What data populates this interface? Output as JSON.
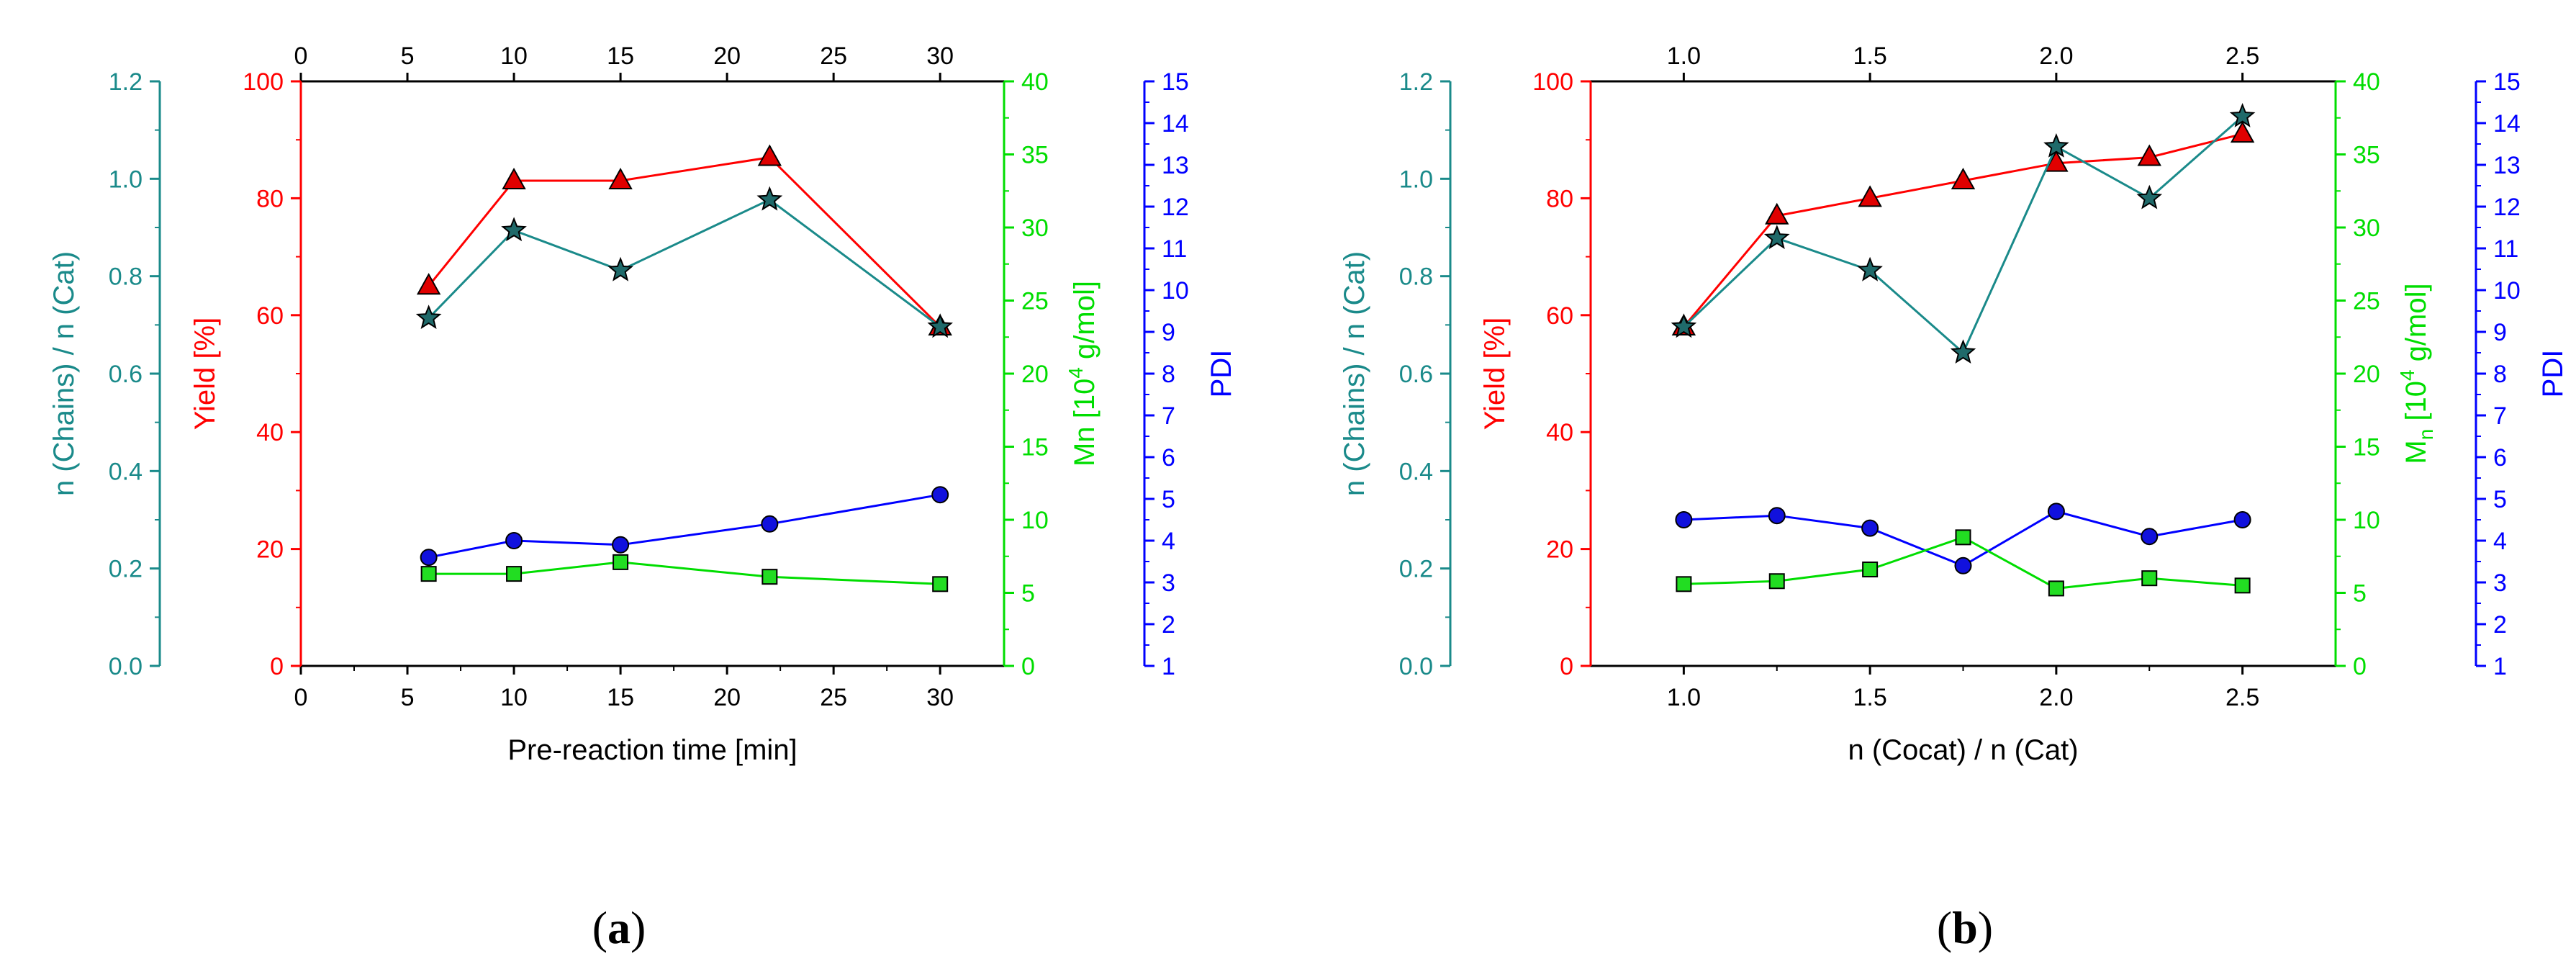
{
  "colors": {
    "red": "#ff0000",
    "teal": "#1a8a8a",
    "green": "#00dd00",
    "blue": "#0000ff",
    "black": "#000000",
    "marker_red": "#e00000",
    "marker_green": "#22dd22",
    "marker_blue": "#1111dd",
    "marker_star": "#1f6a6a"
  },
  "chart_data": [
    {
      "id": "a",
      "type": "line",
      "caption_letter": "a",
      "caption_open": "(",
      "caption_close": ")",
      "xlabel": "Pre-reaction time [min]",
      "xlim": [
        0,
        33
      ],
      "x_ticks": [
        "0",
        "5",
        "10",
        "15",
        "20",
        "25",
        "30"
      ],
      "x_tick_values": [
        0,
        5,
        10,
        15,
        20,
        25,
        30
      ],
      "top_ticks": [
        "0",
        "5",
        "10",
        "15",
        "20",
        "25",
        "30"
      ],
      "top_tick_values": [
        0,
        5,
        10,
        15,
        20,
        25,
        30
      ],
      "axes": {
        "chains": {
          "label": "n (Chains) / n (Cat)",
          "lim": [
            0,
            1.2
          ],
          "ticks": [
            "0.0",
            "0.2",
            "0.4",
            "0.6",
            "0.8",
            "1.0",
            "1.2"
          ]
        },
        "yield": {
          "label": "Yield [%]",
          "lim": [
            0,
            100
          ],
          "ticks": [
            "0",
            "20",
            "40",
            "60",
            "80",
            "100"
          ]
        },
        "mn": {
          "label": "Mn [10",
          "label_sup": "4",
          "label_end": " g/mol]",
          "lim": [
            0,
            40
          ],
          "ticks": [
            "0",
            "5",
            "10",
            "15",
            "20",
            "25",
            "30",
            "35",
            "40"
          ]
        },
        "pdi": {
          "label": "PDI",
          "lim": [
            1,
            15
          ],
          "ticks": [
            "1",
            "2",
            "3",
            "4",
            "5",
            "6",
            "7",
            "8",
            "9",
            "10",
            "11",
            "12",
            "13",
            "14",
            "15"
          ]
        }
      },
      "x": [
        6,
        10,
        15,
        22,
        30
      ],
      "series": [
        {
          "name": "Yield",
          "axis": "yield",
          "marker": "triangle",
          "values": [
            65,
            83,
            83,
            87,
            58
          ]
        },
        {
          "name": "n (Chains) / n (Cat)",
          "axis": "chains",
          "marker": "star",
          "values": [
            0.714,
            0.894,
            0.812,
            0.957,
            0.696
          ]
        },
        {
          "name": "PDI",
          "axis": "pdi",
          "marker": "circle",
          "values": [
            3.6,
            4.0,
            3.9,
            4.4,
            5.1
          ]
        },
        {
          "name": "Mn",
          "axis": "mn",
          "marker": "square",
          "values": [
            6.3,
            6.3,
            7.1,
            6.1,
            5.6
          ]
        }
      ]
    },
    {
      "id": "b",
      "type": "line",
      "caption_letter": "b",
      "caption_open": "(",
      "caption_close": ")",
      "xlabel": "n (Cocat) / n (Cat)",
      "xlim": [
        0.75,
        2.75
      ],
      "x_ticks": [
        "1.0",
        "1.5",
        "2.0",
        "2.5"
      ],
      "x_tick_values": [
        1.0,
        1.5,
        2.0,
        2.5
      ],
      "top_ticks": [
        "1.0",
        "1.5",
        "2.0",
        "2.5"
      ],
      "top_tick_values": [
        1.0,
        1.5,
        2.0,
        2.5
      ],
      "axes": {
        "chains": {
          "label": "n (Chains) / n (Cat)",
          "lim": [
            0,
            1.2
          ],
          "ticks": [
            "0.0",
            "0.2",
            "0.4",
            "0.6",
            "0.8",
            "1.0",
            "1.2"
          ]
        },
        "yield": {
          "label": "Yield [%]",
          "lim": [
            0,
            100
          ],
          "ticks": [
            "0",
            "20",
            "40",
            "60",
            "80",
            "100"
          ]
        },
        "mn": {
          "label": "M",
          "label_sub": "n",
          "label_mid": " [10",
          "label_sup": "4",
          "label_end": " g/mol]",
          "lim": [
            0,
            40
          ],
          "ticks": [
            "0",
            "5",
            "10",
            "15",
            "20",
            "25",
            "30",
            "35",
            "40"
          ]
        },
        "pdi": {
          "label": "PDI",
          "lim": [
            1,
            15
          ],
          "ticks": [
            "1",
            "2",
            "3",
            "4",
            "5",
            "6",
            "7",
            "8",
            "9",
            "10",
            "11",
            "12",
            "13",
            "14",
            "15"
          ]
        }
      },
      "x": [
        1.0,
        1.25,
        1.5,
        1.75,
        2.0,
        2.25,
        2.5
      ],
      "series": [
        {
          "name": "Yield",
          "axis": "yield",
          "marker": "triangle",
          "values": [
            58,
            77,
            80,
            83,
            86,
            87,
            91
          ]
        },
        {
          "name": "n (Chains) / n (Cat)",
          "axis": "chains",
          "marker": "star",
          "values": [
            0.696,
            0.878,
            0.812,
            0.643,
            1.066,
            0.96,
            1.128
          ]
        },
        {
          "name": "PDI",
          "axis": "pdi",
          "marker": "circle",
          "values": [
            4.5,
            4.6,
            4.3,
            3.4,
            4.7,
            4.1,
            4.5
          ]
        },
        {
          "name": "Mn",
          "axis": "mn",
          "marker": "square",
          "values": [
            5.6,
            5.8,
            6.6,
            8.8,
            5.3,
            6.0,
            5.5
          ]
        }
      ]
    }
  ]
}
